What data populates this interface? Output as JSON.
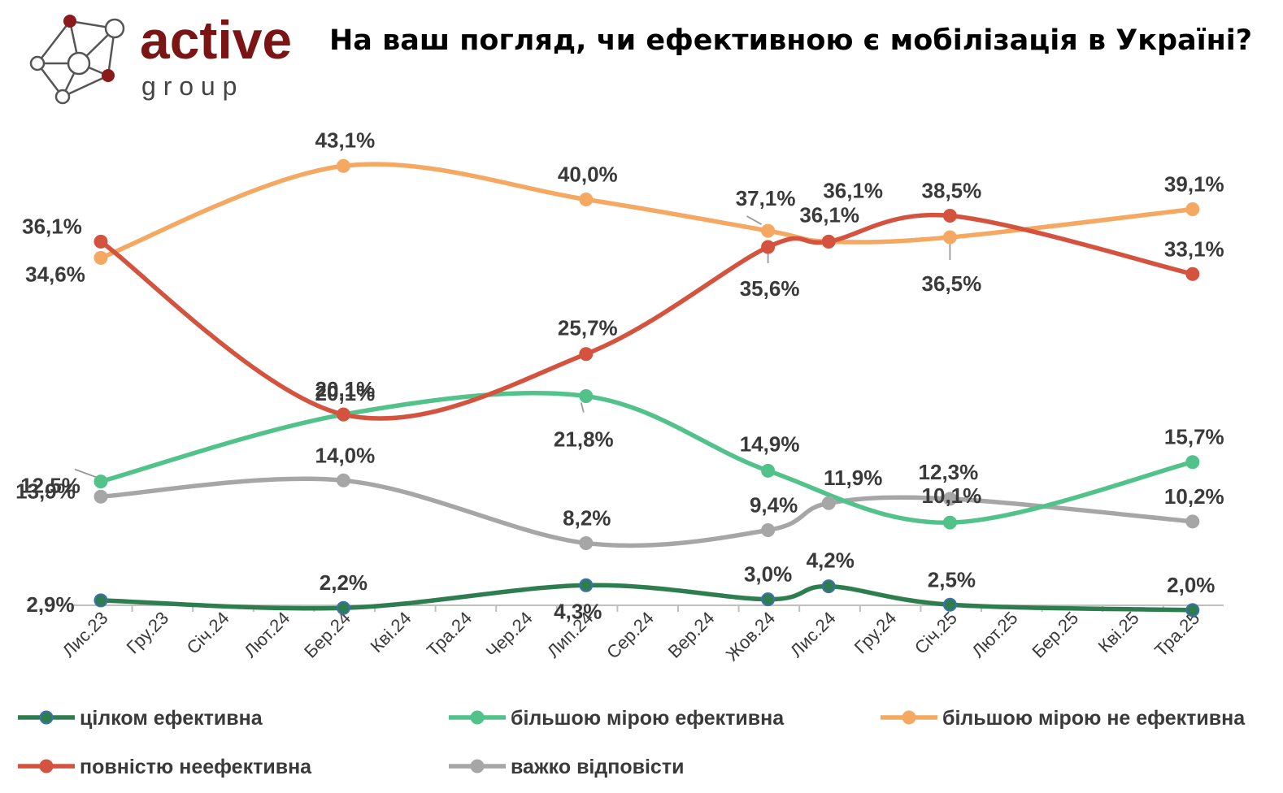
{
  "logo": {
    "word": "active",
    "sub": "g r o u p"
  },
  "title": "На ваш погляд, чи ефективною є мобілізація в Україні?",
  "chart_data": {
    "type": "line",
    "title": "На ваш погляд, чи ефективною є мобілізація в Україні?",
    "categories": [
      "Лис.23",
      "Гру.23",
      "Січ.24",
      "Лют.24",
      "Бер.24",
      "Кві.24",
      "Тра.24",
      "Чер.24",
      "Лип.24",
      "Сер.24",
      "Вер.24",
      "Жов.24",
      "Лис.24",
      "Гру.24",
      "Січ.25",
      "Лют.25",
      "Бер.25",
      "Кві.25",
      "Тра.25"
    ],
    "xlabel": "",
    "ylabel": "",
    "ylim": [
      0,
      45
    ],
    "grid": false,
    "legend_position": "bottom",
    "series": [
      {
        "name": "цілком ефективна",
        "color": "#2E7D4F",
        "marker_edge": "#3B6FB6",
        "points": [
          {
            "i": 0,
            "v": 2.9,
            "label": "2,9%"
          },
          {
            "i": 4,
            "v": 2.2,
            "label": "2,2%"
          },
          {
            "i": 8,
            "v": 4.3,
            "label": "4,3%"
          },
          {
            "i": 11,
            "v": 3.0,
            "label": "3,0%"
          },
          {
            "i": 12,
            "v": 4.2,
            "label": "4,2%"
          },
          {
            "i": 14,
            "v": 2.5,
            "label": "2,5%"
          },
          {
            "i": 18,
            "v": 2.0,
            "label": "2,0%"
          }
        ]
      },
      {
        "name": "більшою мірою ефективна",
        "color": "#52C28B",
        "points": [
          {
            "i": 0,
            "v": 13.9,
            "label": "13,9%"
          },
          {
            "i": 4,
            "v": 20.1,
            "label": "20,1%"
          },
          {
            "i": 8,
            "v": 21.8,
            "label": "21,8%"
          },
          {
            "i": 11,
            "v": 14.9,
            "label": "14,9%"
          },
          {
            "i": 14,
            "v": 10.1,
            "label": "10,1%"
          },
          {
            "i": 18,
            "v": 15.7,
            "label": "15,7%"
          }
        ]
      },
      {
        "name": "більшою мірою не ефективна",
        "color": "#F4A861",
        "points": [
          {
            "i": 0,
            "v": 34.6,
            "label": "34,6%"
          },
          {
            "i": 4,
            "v": 43.1,
            "label": "43,1%"
          },
          {
            "i": 8,
            "v": 40.0,
            "label": "40,0%"
          },
          {
            "i": 11,
            "v": 37.1,
            "label": "37,1%"
          },
          {
            "i": 12,
            "v": 36.1,
            "label": "36,1%"
          },
          {
            "i": 14,
            "v": 36.5,
            "label": "36,5%"
          },
          {
            "i": 18,
            "v": 39.1,
            "label": "39,1%"
          }
        ]
      },
      {
        "name": "повністю неефективна",
        "color": "#D4533F",
        "points": [
          {
            "i": 0,
            "v": 36.1,
            "label": "36,1%"
          },
          {
            "i": 4,
            "v": 20.1,
            "label": "20,1%"
          },
          {
            "i": 8,
            "v": 25.7,
            "label": "25,7%"
          },
          {
            "i": 11,
            "v": 35.6,
            "label": "35,6%"
          },
          {
            "i": 12,
            "v": 36.1,
            "label": "36,1%"
          },
          {
            "i": 14,
            "v": 38.5,
            "label": "38,5%"
          },
          {
            "i": 18,
            "v": 33.1,
            "label": "33,1%"
          }
        ]
      },
      {
        "name": "важко відповісти",
        "color": "#A6A6A6",
        "points": [
          {
            "i": 0,
            "v": 12.5,
            "label": "12,5%"
          },
          {
            "i": 4,
            "v": 14.0,
            "label": "14,0%"
          },
          {
            "i": 8,
            "v": 8.2,
            "label": "8,2%"
          },
          {
            "i": 11,
            "v": 9.4,
            "label": "9,4%"
          },
          {
            "i": 12,
            "v": 11.9,
            "label": "11,9%"
          },
          {
            "i": 14,
            "v": 12.3,
            "label": "12,3%"
          },
          {
            "i": 18,
            "v": 10.2,
            "label": "10,2%"
          }
        ]
      }
    ]
  }
}
